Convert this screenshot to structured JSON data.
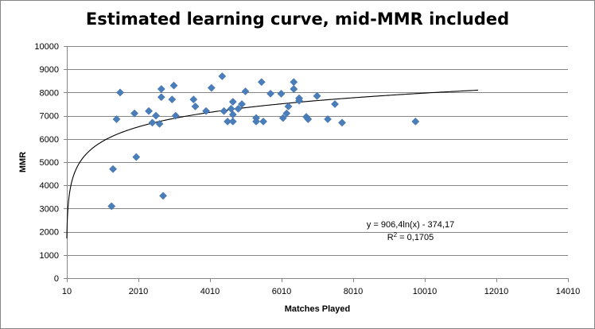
{
  "chart_data": {
    "type": "scatter",
    "title": "Estimated learning curve, mid-MMR included",
    "xlabel": "Matches Played",
    "ylabel": "MMR",
    "xlim": [
      10,
      14010
    ],
    "ylim": [
      0,
      10000
    ],
    "xticks": [
      "10",
      "2010",
      "4010",
      "6010",
      "8010",
      "10010",
      "12010",
      "14010"
    ],
    "yticks": [
      "0",
      "1000",
      "2000",
      "3000",
      "4000",
      "5000",
      "6000",
      "7000",
      "8000",
      "9000",
      "10000"
    ],
    "grid": "horizontal",
    "marker_color": "#4a7ebb",
    "points": [
      [
        1260,
        3100
      ],
      [
        1300,
        4700
      ],
      [
        1400,
        6850
      ],
      [
        1500,
        8000
      ],
      [
        1900,
        7100
      ],
      [
        1950,
        5220
      ],
      [
        2300,
        7200
      ],
      [
        2400,
        6700
      ],
      [
        2500,
        7000
      ],
      [
        2600,
        6650
      ],
      [
        2650,
        8150
      ],
      [
        2650,
        7800
      ],
      [
        2700,
        3550
      ],
      [
        2950,
        7700
      ],
      [
        3000,
        8300
      ],
      [
        3050,
        7000
      ],
      [
        3550,
        7700
      ],
      [
        3600,
        7400
      ],
      [
        3900,
        7200
      ],
      [
        4050,
        8200
      ],
      [
        4350,
        8700
      ],
      [
        4400,
        7200
      ],
      [
        4500,
        6750
      ],
      [
        4600,
        7300
      ],
      [
        4650,
        7050
      ],
      [
        4650,
        6750
      ],
      [
        4650,
        7600
      ],
      [
        4800,
        7300
      ],
      [
        4900,
        7500
      ],
      [
        5000,
        8050
      ],
      [
        5300,
        6900
      ],
      [
        5300,
        6750
      ],
      [
        5450,
        8450
      ],
      [
        5500,
        6750
      ],
      [
        5700,
        7950
      ],
      [
        6000,
        7950
      ],
      [
        6050,
        6900
      ],
      [
        6150,
        7100
      ],
      [
        6200,
        7400
      ],
      [
        6350,
        8450
      ],
      [
        6350,
        8150
      ],
      [
        6500,
        7750
      ],
      [
        6500,
        7650
      ],
      [
        6700,
        6950
      ],
      [
        6750,
        6850
      ],
      [
        7000,
        7850
      ],
      [
        7300,
        6850
      ],
      [
        7500,
        7500
      ],
      [
        7700,
        6700
      ],
      [
        9750,
        6750
      ]
    ],
    "trendline": {
      "type": "logarithmic",
      "a": 906.4,
      "b": -374.17,
      "x_start": 10,
      "x_end": 11500,
      "equation": "y = 906,4ln(x) - 374,17",
      "r2_prefix": "R",
      "r2_sup": "2",
      "r2_suffix": " = 0,1705"
    }
  }
}
